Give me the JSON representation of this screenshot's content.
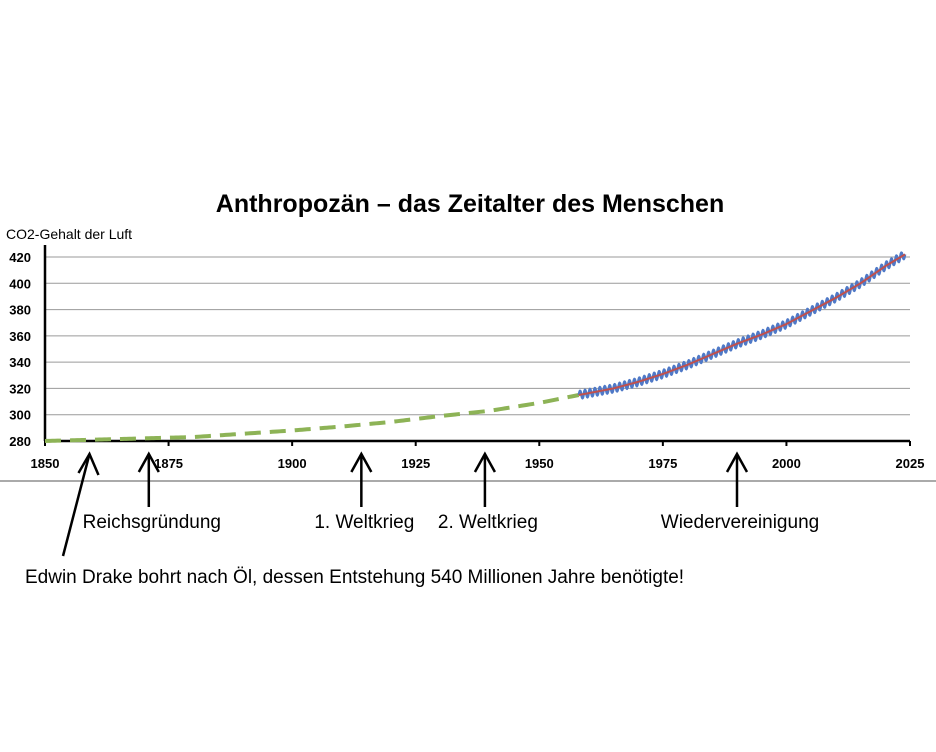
{
  "chart_data": {
    "type": "line",
    "title": "Anthropozän – das Zeitalter des Menschen",
    "ylabel": "CO2-Gehalt der Luft",
    "xlabel": "",
    "xlim": [
      1850,
      2025
    ],
    "ylim": [
      280,
      420
    ],
    "x_ticks": [
      1850,
      1875,
      1900,
      1925,
      1950,
      1975,
      2000,
      2025
    ],
    "y_ticks": [
      280,
      300,
      320,
      340,
      360,
      380,
      400,
      420
    ],
    "grid": "horizontal",
    "colors": {
      "historical": "#8db356",
      "measured_monthly": "#4f79c7",
      "measured_trend": "#c0504d",
      "axis": "#000000",
      "grid": "#9a9a9a",
      "divider": "#555555"
    },
    "series": [
      {
        "style": "dashed",
        "x": [
          1850,
          1860,
          1870,
          1880,
          1890,
          1900,
          1910,
          1920,
          1930,
          1940,
          1950,
          1958
        ],
        "values": [
          280,
          281,
          282,
          283,
          285.5,
          288,
          291,
          294.5,
          299,
          303,
          309,
          315
        ]
      },
      {
        "style": "monthly",
        "amplitude": 3,
        "x": [
          1958,
          1965,
          1970,
          1975,
          1980,
          1985,
          1990,
          1995,
          2000,
          2005,
          2010,
          2015,
          2020,
          2024
        ],
        "values": [
          315,
          320,
          325,
          331,
          338,
          346,
          354,
          361,
          369,
          379,
          389,
          400,
          413,
          422
        ]
      },
      {
        "style": "trend",
        "x": [
          1958,
          1965,
          1970,
          1975,
          1980,
          1985,
          1990,
          1995,
          2000,
          2005,
          2010,
          2015,
          2020,
          2024
        ],
        "values": [
          315,
          320,
          325,
          331,
          338,
          346,
          354,
          361,
          369,
          379,
          389,
          400,
          413,
          422
        ]
      }
    ],
    "annotations": [
      {
        "text": "Edwin Drake bohrt nach Öl, dessen Entstehung 540 Millionen Jahre benötigte!",
        "x": 1859
      },
      {
        "text": "Reichsgründung",
        "x": 1871
      },
      {
        "text": "1. Weltkrieg",
        "x": 1914
      },
      {
        "text": "2. Weltkrieg",
        "x": 1939
      },
      {
        "text": "Wiedervereinigung",
        "x": 1990
      }
    ]
  }
}
